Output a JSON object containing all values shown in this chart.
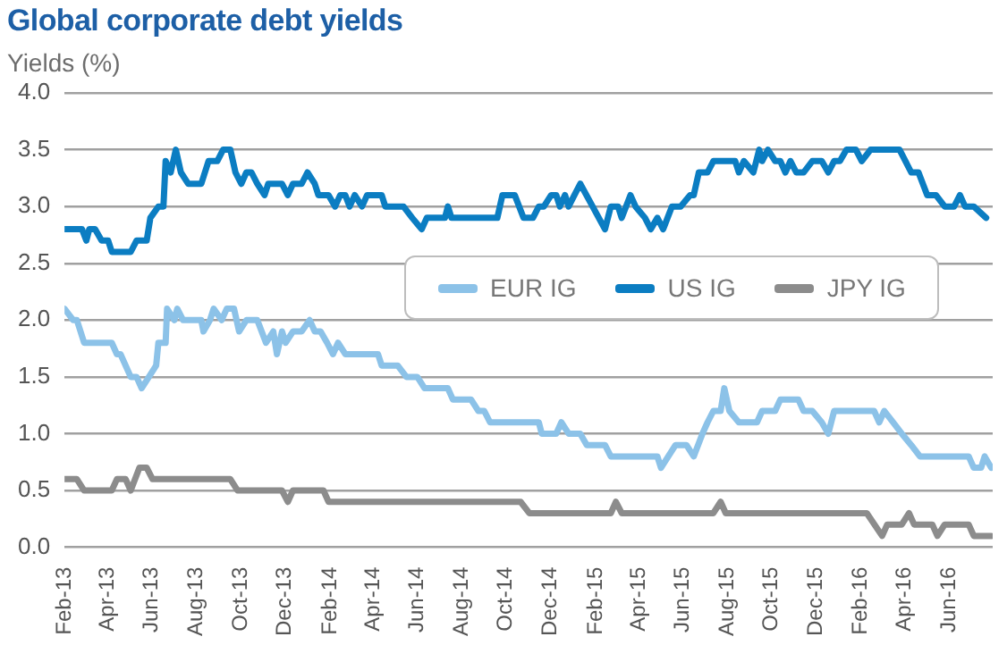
{
  "chart_data": {
    "type": "line",
    "title": "Global corporate debt yields",
    "ylabel": "Yields (%)",
    "xlim": [
      "2013-02-01",
      "2016-07-31"
    ],
    "xticks": [
      {
        "value": "2013-02-01",
        "label": "Feb-13"
      },
      {
        "value": "2013-04-01",
        "label": "Apr-13"
      },
      {
        "value": "2013-06-01",
        "label": "Jun-13"
      },
      {
        "value": "2013-08-01",
        "label": "Aug-13"
      },
      {
        "value": "2013-10-01",
        "label": "Oct-13"
      },
      {
        "value": "2013-12-01",
        "label": "Dec-13"
      },
      {
        "value": "2014-02-01",
        "label": "Feb-14"
      },
      {
        "value": "2014-04-01",
        "label": "Apr-14"
      },
      {
        "value": "2014-06-01",
        "label": "Jun-14"
      },
      {
        "value": "2014-08-01",
        "label": "Aug-14"
      },
      {
        "value": "2014-10-01",
        "label": "Oct-14"
      },
      {
        "value": "2014-12-01",
        "label": "Dec-14"
      },
      {
        "value": "2015-02-01",
        "label": "Feb-15"
      },
      {
        "value": "2015-04-01",
        "label": "Apr-15"
      },
      {
        "value": "2015-06-01",
        "label": "Jun-15"
      },
      {
        "value": "2015-08-01",
        "label": "Aug-15"
      },
      {
        "value": "2015-10-01",
        "label": "Oct-15"
      },
      {
        "value": "2015-12-01",
        "label": "Dec-15"
      },
      {
        "value": "2016-02-01",
        "label": "Feb-16"
      },
      {
        "value": "2016-04-01",
        "label": "Apr-16"
      },
      {
        "value": "2016-06-01",
        "label": "Jun-16"
      }
    ],
    "ylim": [
      0,
      4
    ],
    "yticks": [
      {
        "value": 0,
        "label": "0.0"
      },
      {
        "value": 0.5,
        "label": "0.5"
      },
      {
        "value": 1,
        "label": "1.0"
      },
      {
        "value": 1.5,
        "label": "1.5"
      },
      {
        "value": 2,
        "label": "2.0"
      },
      {
        "value": 2.5,
        "label": "2.5"
      },
      {
        "value": 3,
        "label": "3.0"
      },
      {
        "value": 3.5,
        "label": "3.5"
      },
      {
        "value": 4,
        "label": "4.0"
      }
    ],
    "grid": "y",
    "legend": "right",
    "marker": "none",
    "line_style": "solid",
    "series": [
      {
        "name": "EUR IG",
        "color": "#8cc2e8",
        "x": [
          "2013-02-01",
          "2013-02-13",
          "2013-02-18",
          "2013-02-28",
          "2013-04-07",
          "2013-04-14",
          "2013-04-19",
          "2013-05-03",
          "2013-05-11",
          "2013-05-18",
          "2013-05-28",
          "2013-06-07",
          "2013-06-10",
          "2013-06-20",
          "2013-06-22",
          "2013-07-02",
          "2013-07-06",
          "2013-07-14",
          "2013-08-08",
          "2013-08-11",
          "2013-08-20",
          "2013-08-25",
          "2013-09-05",
          "2013-09-12",
          "2013-09-22",
          "2013-09-29",
          "2013-10-09",
          "2013-10-24",
          "2013-11-05",
          "2013-11-15",
          "2013-11-20",
          "2013-11-27",
          "2013-12-02",
          "2013-12-12",
          "2013-12-24",
          "2014-01-04",
          "2014-01-11",
          "2014-01-19",
          "2014-01-28",
          "2014-02-05",
          "2014-02-12",
          "2014-02-22",
          "2014-04-08",
          "2014-04-13",
          "2014-05-05",
          "2014-05-17",
          "2014-06-01",
          "2014-06-11",
          "2014-07-13",
          "2014-07-20",
          "2014-08-14",
          "2014-08-24",
          "2014-09-01",
          "2014-09-09",
          "2014-11-15",
          "2014-11-19",
          "2014-12-09",
          "2014-12-16",
          "2014-12-26",
          "2015-01-11",
          "2015-01-20",
          "2015-02-14",
          "2015-02-22",
          "2015-04-27",
          "2015-05-02",
          "2015-05-22",
          "2015-06-06",
          "2015-06-16",
          "2015-06-28",
          "2015-07-05",
          "2015-07-13",
          "2015-07-23",
          "2015-07-28",
          "2015-08-04",
          "2015-08-17",
          "2015-09-11",
          "2015-09-18",
          "2015-10-06",
          "2015-10-13",
          "2015-11-07",
          "2015-11-14",
          "2015-11-26",
          "2015-12-09",
          "2015-12-18",
          "2015-12-26",
          "2016-02-19",
          "2016-02-26",
          "2016-03-04",
          "2016-03-16",
          "2016-03-28",
          "2016-04-10",
          "2016-04-22",
          "2016-06-28",
          "2016-07-05",
          "2016-07-15",
          "2016-07-20",
          "2016-07-29"
        ],
        "values": [
          2.1,
          2.0,
          2.0,
          1.8,
          1.8,
          1.7,
          1.7,
          1.5,
          1.5,
          1.4,
          1.5,
          1.6,
          1.8,
          1.8,
          2.1,
          2.0,
          2.1,
          2.0,
          2.0,
          1.9,
          2.0,
          2.1,
          2.0,
          2.1,
          2.1,
          1.9,
          2.0,
          2.0,
          1.8,
          1.9,
          1.7,
          1.9,
          1.8,
          1.9,
          1.9,
          2.0,
          1.9,
          1.9,
          1.8,
          1.7,
          1.8,
          1.7,
          1.7,
          1.6,
          1.6,
          1.5,
          1.5,
          1.4,
          1.4,
          1.3,
          1.3,
          1.2,
          1.2,
          1.1,
          1.1,
          1.0,
          1.0,
          1.1,
          1.0,
          1.0,
          0.9,
          0.9,
          0.8,
          0.8,
          0.7,
          0.9,
          0.9,
          0.8,
          1.0,
          1.1,
          1.2,
          1.2,
          1.4,
          1.2,
          1.1,
          1.1,
          1.2,
          1.2,
          1.3,
          1.3,
          1.2,
          1.2,
          1.1,
          1.0,
          1.2,
          1.2,
          1.1,
          1.2,
          1.1,
          1.0,
          0.9,
          0.8,
          0.8,
          0.7,
          0.7,
          0.8,
          0.7
        ]
      },
      {
        "name": "US IG",
        "color": "#0b7dc2",
        "x": [
          "2013-02-01",
          "2013-02-25",
          "2013-03-03",
          "2013-03-07",
          "2013-03-15",
          "2013-03-24",
          "2013-04-02",
          "2013-04-07",
          "2013-05-03",
          "2013-05-11",
          "2013-05-25",
          "2013-05-30",
          "2013-06-10",
          "2013-06-17",
          "2013-06-20",
          "2013-06-27",
          "2013-07-04",
          "2013-07-11",
          "2013-07-21",
          "2013-08-08",
          "2013-08-18",
          "2013-08-30",
          "2013-09-07",
          "2013-09-17",
          "2013-09-24",
          "2013-10-02",
          "2013-10-09",
          "2013-10-16",
          "2013-10-24",
          "2013-11-03",
          "2013-11-08",
          "2013-11-27",
          "2013-12-05",
          "2013-12-12",
          "2013-12-24",
          "2014-01-01",
          "2014-01-11",
          "2014-01-16",
          "2014-01-30",
          "2014-02-08",
          "2014-02-15",
          "2014-02-22",
          "2014-02-28",
          "2014-03-07",
          "2014-03-17",
          "2014-03-24",
          "2014-04-01",
          "2014-04-13",
          "2014-04-18",
          "2014-05-13",
          "2014-05-25",
          "2014-06-07",
          "2014-06-14",
          "2014-07-09",
          "2014-07-13",
          "2014-07-18",
          "2014-09-19",
          "2014-09-26",
          "2014-10-13",
          "2014-10-25",
          "2014-11-07",
          "2014-11-15",
          "2014-11-22",
          "2014-12-02",
          "2014-12-09",
          "2014-12-14",
          "2014-12-21",
          "2014-12-26",
          "2015-01-03",
          "2015-01-11",
          "2015-01-28",
          "2015-02-14",
          "2015-02-22",
          "2015-03-04",
          "2015-03-09",
          "2015-03-21",
          "2015-03-28",
          "2015-04-10",
          "2015-04-18",
          "2015-04-27",
          "2015-05-05",
          "2015-05-17",
          "2015-05-29",
          "2015-06-11",
          "2015-06-16",
          "2015-06-23",
          "2015-07-05",
          "2015-07-13",
          "2015-08-12",
          "2015-08-17",
          "2015-08-24",
          "2015-09-06",
          "2015-09-14",
          "2015-09-18",
          "2015-09-26",
          "2015-10-06",
          "2015-10-13",
          "2015-10-20",
          "2015-10-27",
          "2015-11-04",
          "2015-11-14",
          "2015-11-26",
          "2015-12-09",
          "2015-12-18",
          "2015-12-26",
          "2016-01-03",
          "2016-01-12",
          "2016-01-25",
          "2016-02-02",
          "2016-02-14",
          "2016-03-25",
          "2016-04-10",
          "2016-04-20",
          "2016-05-02",
          "2016-05-14",
          "2016-05-26",
          "2016-06-08",
          "2016-06-16",
          "2016-06-23",
          "2016-07-05",
          "2016-07-22"
        ],
        "values": [
          2.8,
          2.8,
          2.7,
          2.8,
          2.8,
          2.7,
          2.7,
          2.6,
          2.6,
          2.7,
          2.7,
          2.9,
          3.0,
          3.0,
          3.4,
          3.3,
          3.5,
          3.3,
          3.2,
          3.2,
          3.4,
          3.4,
          3.5,
          3.5,
          3.3,
          3.2,
          3.3,
          3.3,
          3.2,
          3.1,
          3.2,
          3.2,
          3.1,
          3.2,
          3.2,
          3.3,
          3.2,
          3.1,
          3.1,
          3.0,
          3.1,
          3.1,
          3.0,
          3.1,
          3.0,
          3.1,
          3.1,
          3.1,
          3.0,
          3.0,
          2.9,
          2.8,
          2.9,
          2.9,
          3.0,
          2.9,
          2.9,
          3.1,
          3.1,
          2.9,
          2.9,
          3.0,
          3.0,
          3.1,
          3.1,
          3.0,
          3.1,
          3.0,
          3.1,
          3.2,
          3.0,
          2.8,
          3.0,
          3.0,
          2.9,
          3.1,
          3.0,
          2.9,
          2.8,
          2.9,
          2.8,
          3.0,
          3.0,
          3.1,
          3.1,
          3.3,
          3.3,
          3.4,
          3.4,
          3.3,
          3.4,
          3.3,
          3.5,
          3.4,
          3.5,
          3.4,
          3.4,
          3.3,
          3.4,
          3.3,
          3.3,
          3.4,
          3.4,
          3.3,
          3.4,
          3.4,
          3.5,
          3.5,
          3.4,
          3.5,
          3.5,
          3.3,
          3.3,
          3.1,
          3.1,
          3.0,
          3.0,
          3.1,
          3.0,
          3.0,
          2.9
        ]
      },
      {
        "name": "JPY IG",
        "color": "#8c8c8c",
        "x": [
          "2013-02-01",
          "2013-02-18",
          "2013-02-28",
          "2013-04-07",
          "2013-04-14",
          "2013-04-26",
          "2013-05-03",
          "2013-05-15",
          "2013-05-25",
          "2013-06-02",
          "2013-09-17",
          "2013-09-27",
          "2013-11-27",
          "2013-12-05",
          "2013-12-12",
          "2014-01-23",
          "2014-01-30",
          "2014-10-21",
          "2014-11-02",
          "2015-02-22",
          "2015-03-01",
          "2015-03-09",
          "2015-07-13",
          "2015-07-23",
          "2015-07-30",
          "2016-02-09",
          "2016-03-01",
          "2016-03-08",
          "2016-03-28",
          "2016-04-07",
          "2016-04-14",
          "2016-05-09",
          "2016-05-16",
          "2016-05-26",
          "2016-06-28",
          "2016-07-05",
          "2016-07-29"
        ],
        "values": [
          0.6,
          0.6,
          0.5,
          0.5,
          0.6,
          0.6,
          0.5,
          0.7,
          0.7,
          0.6,
          0.6,
          0.5,
          0.5,
          0.4,
          0.5,
          0.5,
          0.4,
          0.4,
          0.3,
          0.3,
          0.4,
          0.3,
          0.3,
          0.4,
          0.3,
          0.3,
          0.1,
          0.2,
          0.2,
          0.3,
          0.2,
          0.2,
          0.1,
          0.2,
          0.2,
          0.1,
          0.1
        ]
      }
    ]
  }
}
